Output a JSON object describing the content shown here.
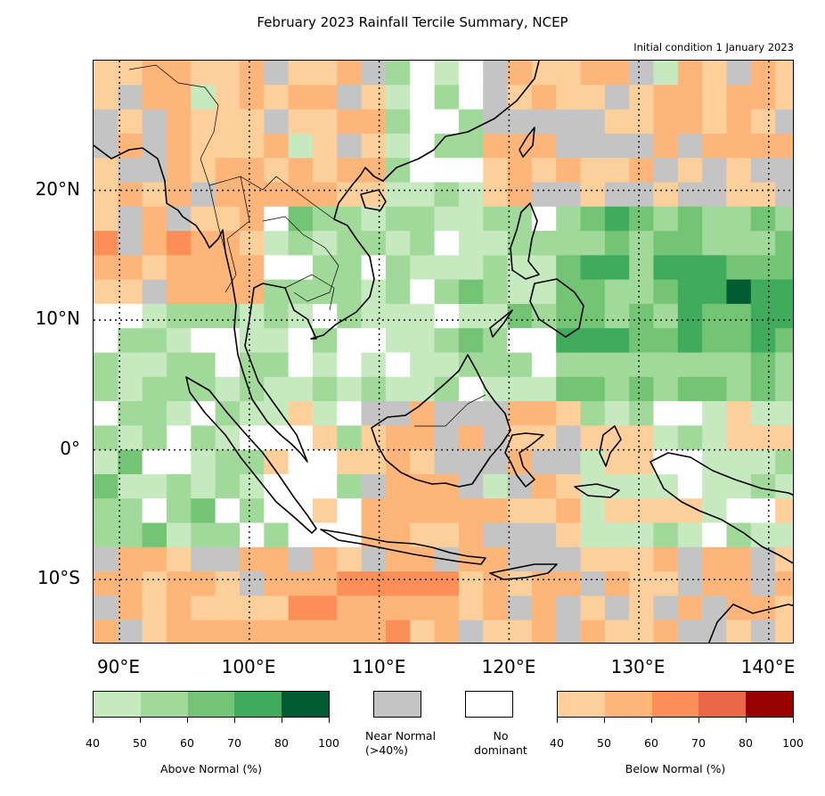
{
  "title": "February 2023 Rainfall Tercile Summary, NCEP",
  "subtitle": "Initial condition 1 January 2023",
  "map": {
    "lon_range": [
      88,
      142
    ],
    "lat_range": [
      -15,
      30
    ],
    "grid_lons": [
      90,
      100,
      110,
      120,
      130,
      140
    ],
    "grid_lats": [
      20,
      10,
      0,
      -10
    ],
    "lat_labels": [
      "20°N",
      "10°N",
      "0°",
      "10°S"
    ],
    "lon_labels": [
      "90°E",
      "100°E",
      "110°E",
      "120°E",
      "130°E",
      "140°E"
    ]
  },
  "colors": {
    "above": [
      "#c7e9c0",
      "#a1d99b",
      "#74c476",
      "#41ab5d",
      "#005a32"
    ],
    "near_normal": "#c4c4c4",
    "no_dominant": "#ffffff",
    "below": [
      "#fdd09b",
      "#fdb57a",
      "#fc8e58",
      "#ec6648",
      "#990000"
    ]
  },
  "legend": {
    "above": {
      "ticks": [
        "40",
        "50",
        "60",
        "70",
        "80",
        "100"
      ],
      "caption": "Above Normal (%)"
    },
    "near_normal": {
      "caption_line1": "Near Normal",
      "caption_line2": "(>40%)"
    },
    "no_dominant": {
      "caption_line1": "No",
      "caption_line2": "dominant"
    },
    "below": {
      "ticks": [
        "40",
        "50",
        "60",
        "70",
        "80",
        "100"
      ],
      "caption": "Below Normal (%)"
    }
  }
}
